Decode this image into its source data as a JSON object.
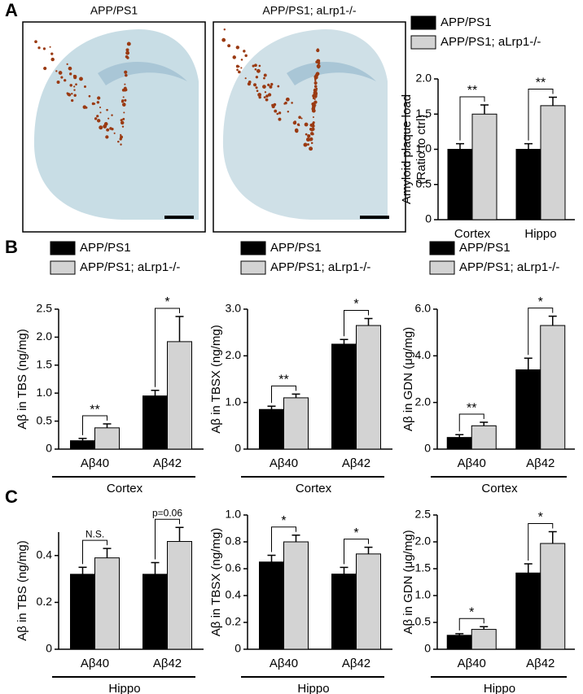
{
  "panel_labels": [
    "A",
    "B",
    "C"
  ],
  "image_labels": [
    "APP/PS1",
    "APP/PS1; aLrp1-/-"
  ],
  "chart_data": [
    {
      "type": "bar",
      "ylabel": [
        "Amyloid plaque load",
        "(Ratio to ctrl)"
      ],
      "categories": [
        "Cortex",
        "Hippo"
      ],
      "annotations": [
        "**",
        "**"
      ],
      "ylim": [
        0,
        2
      ],
      "yticks": [
        0,
        0.5,
        {
          "value": 1,
          "label": "1.0"
        },
        {
          "value": 1.5,
          "label": "1.5"
        },
        {
          "value": 2,
          "label": "2.0"
        }
      ],
      "series": [
        {
          "name": "APP/PS1",
          "color": "#000000",
          "values": [
            1.0,
            1.0
          ],
          "errors": [
            0.08,
            0.08
          ]
        },
        {
          "name": "APP/PS1; aLrp1-/-",
          "color": "#d3d3d3",
          "values": [
            1.5,
            1.62
          ],
          "errors": [
            0.13,
            0.12
          ]
        }
      ]
    },
    {
      "type": "bar",
      "ylabel": [
        "Aβ in TBS (ng/mg)"
      ],
      "categories": [
        "Aβ40",
        "Aβ42"
      ],
      "group_label": "Cortex",
      "annotations": [
        "**",
        "*"
      ],
      "ylim": [
        0,
        2.5
      ],
      "yticks": [
        0,
        0.5,
        {
          "value": 1,
          "label": "1.0"
        },
        1.5,
        {
          "value": 2,
          "label": "2.0"
        },
        2.5
      ],
      "series": [
        {
          "name": "APP/PS1",
          "color": "#000000",
          "values": [
            0.15,
            0.95
          ],
          "errors": [
            0.04,
            0.1
          ]
        },
        {
          "name": "APP/PS1; aLrp1-/-",
          "color": "#d3d3d3",
          "values": [
            0.38,
            1.92
          ],
          "errors": [
            0.07,
            0.45
          ]
        }
      ]
    },
    {
      "type": "bar",
      "ylabel": [
        "Aβ in TBSX (ng/mg)"
      ],
      "categories": [
        "Aβ40",
        "Aβ42"
      ],
      "group_label": "Cortex",
      "annotations": [
        "**",
        "*"
      ],
      "ylim": [
        0,
        3
      ],
      "yticks": [
        0,
        {
          "value": 1,
          "label": "1.0"
        },
        {
          "value": 2,
          "label": "2.0"
        },
        {
          "value": 3,
          "label": "3.0"
        }
      ],
      "series": [
        {
          "name": "APP/PS1",
          "color": "#000000",
          "values": [
            0.85,
            2.25
          ],
          "errors": [
            0.07,
            0.1
          ]
        },
        {
          "name": "APP/PS1; aLrp1-/-",
          "color": "#d3d3d3",
          "values": [
            1.1,
            2.65
          ],
          "errors": [
            0.08,
            0.15
          ]
        }
      ]
    },
    {
      "type": "bar",
      "ylabel": [
        "Aβ in GDN (μg/mg)"
      ],
      "categories": [
        "Aβ40",
        "Aβ42"
      ],
      "group_label": "Cortex",
      "annotations": [
        "**",
        "*"
      ],
      "ylim": [
        0,
        6
      ],
      "yticks": [
        0,
        {
          "value": 2,
          "label": "2.0"
        },
        {
          "value": 4,
          "label": "4.0"
        },
        {
          "value": 6,
          "label": "6.0"
        }
      ],
      "series": [
        {
          "name": "APP/PS1",
          "color": "#000000",
          "values": [
            0.5,
            3.4
          ],
          "errors": [
            0.12,
            0.5
          ]
        },
        {
          "name": "APP/PS1; aLrp1-/-",
          "color": "#d3d3d3",
          "values": [
            1.0,
            5.3
          ],
          "errors": [
            0.15,
            0.4
          ]
        }
      ]
    },
    {
      "type": "bar",
      "ylabel": [
        "Aβ in TBS (ng/mg)"
      ],
      "categories": [
        "Aβ40",
        "Aβ42"
      ],
      "group_label": "Hippo",
      "annotations": [
        "N.S.",
        "p=0.06"
      ],
      "ylim": [
        0,
        0.5
      ],
      "yticks": [
        0,
        0.2,
        0.4
      ],
      "series": [
        {
          "color": "#000000",
          "values": [
            0.32,
            0.32
          ],
          "errors": [
            0.03,
            0.05
          ]
        },
        {
          "color": "#d3d3d3",
          "values": [
            0.39,
            0.46
          ],
          "errors": [
            0.04,
            0.06
          ]
        }
      ]
    },
    {
      "type": "bar",
      "ylabel": [
        "Aβ in TBSX (ng/mg)"
      ],
      "categories": [
        "Aβ40",
        "Aβ42"
      ],
      "group_label": "Hippo",
      "annotations": [
        "*",
        "*"
      ],
      "ylim": [
        0,
        1
      ],
      "yticks": [
        0,
        0.2,
        0.4,
        0.6,
        0.8,
        {
          "value": 1,
          "label": "1.0"
        }
      ],
      "series": [
        {
          "color": "#000000",
          "values": [
            0.65,
            0.56
          ],
          "errors": [
            0.05,
            0.05
          ]
        },
        {
          "color": "#d3d3d3",
          "values": [
            0.8,
            0.71
          ],
          "errors": [
            0.05,
            0.05
          ]
        }
      ]
    },
    {
      "type": "bar",
      "ylabel": [
        "Aβ in GDN (μg/mg)"
      ],
      "categories": [
        "Aβ40",
        "Aβ42"
      ],
      "group_label": "Hippo",
      "annotations": [
        "*",
        "*"
      ],
      "ylim": [
        0,
        2.5
      ],
      "yticks": [
        0,
        0.5,
        {
          "value": 1,
          "label": "1.0"
        },
        1.5,
        {
          "value": 2,
          "label": "2.0"
        },
        2.5
      ],
      "series": [
        {
          "color": "#000000",
          "values": [
            0.26,
            1.42
          ],
          "errors": [
            0.03,
            0.17
          ]
        },
        {
          "color": "#d3d3d3",
          "values": [
            0.37,
            1.97
          ],
          "errors": [
            0.05,
            0.22
          ]
        }
      ]
    }
  ]
}
